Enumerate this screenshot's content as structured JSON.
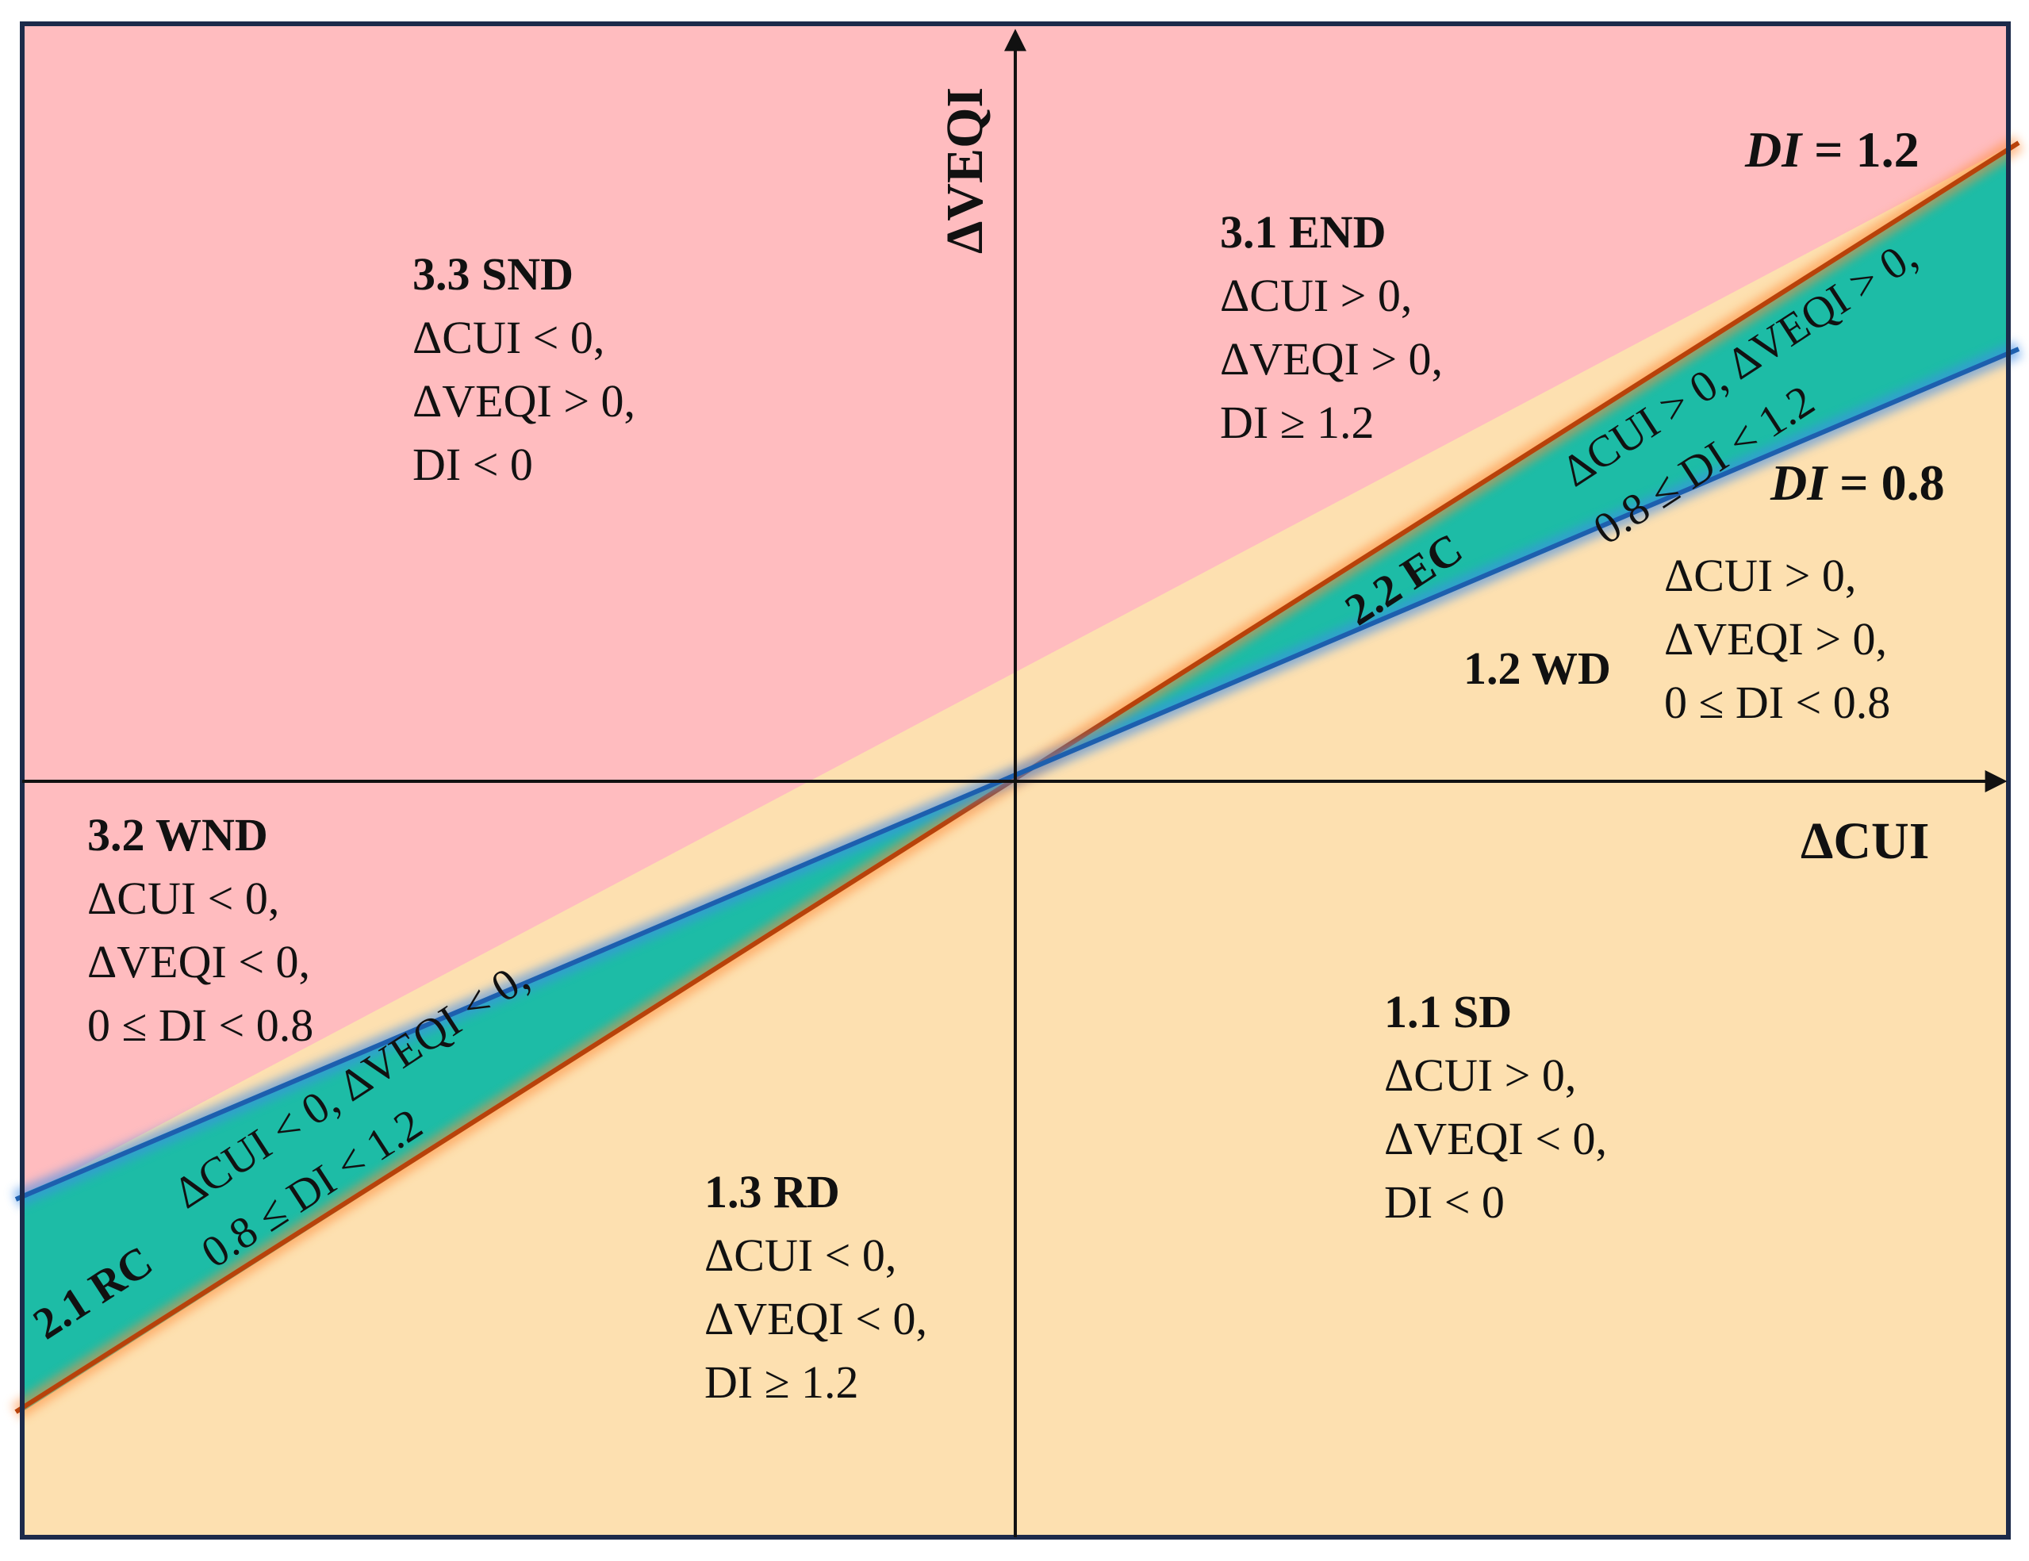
{
  "colors": {
    "pink": "#ffbcbf",
    "tan": "#fde0b0",
    "teal": "#1dbca6",
    "orange": "#f46a1e",
    "blue": "#2a78c8",
    "border": "#1c2a4a",
    "axis": "#111111"
  },
  "axes": {
    "x_label": "ΔCUI",
    "y_label": "ΔVEQI"
  },
  "lines": {
    "di_upper": "DI = 1.2",
    "di_lower": "DI = 0.8"
  },
  "regions": {
    "snd": {
      "title": "3.3 SND",
      "c1": "ΔCUI  < 0,",
      "c2": "ΔVEQI  > 0,",
      "c3": "DI  < 0"
    },
    "end": {
      "title": "3.1 END",
      "c1": "ΔCUI > 0,",
      "c2": "ΔVEQI  > 0,",
      "c3": "DI ≥ 1.2"
    },
    "wd": {
      "title": "1.2 WD",
      "c1": "ΔCUI > 0,",
      "c2": "ΔVEQI > 0,",
      "c3": "0 ≤ DI < 0.8"
    },
    "wnd": {
      "title": "3.2 WND",
      "c1": "ΔCUI  < 0,",
      "c2": "ΔVEQI <  0,",
      "c3": "0 ≤ DI < 0.8"
    },
    "sd": {
      "title": "1.1 SD",
      "c1": "ΔCUI > 0,",
      "c2": "ΔVEQI  < 0,",
      "c3": "DI < 0"
    },
    "rd": {
      "title": "1.3 RD",
      "c1": "ΔCUI < 0,",
      "c2": "ΔVEQI <  0,",
      "c3": "DI ≥ 1.2"
    }
  },
  "bands": {
    "ec": {
      "title": "2.2 EC",
      "c1": "ΔCUI > 0, ΔVEQI > 0,",
      "c2": "0.8 ≤ DI < 1.2"
    },
    "rc": {
      "title": "2.1 RC",
      "c1": "ΔCUI < 0, ΔVEQI < 0,",
      "c2": "0.8 ≤ DI < 1.2"
    }
  }
}
